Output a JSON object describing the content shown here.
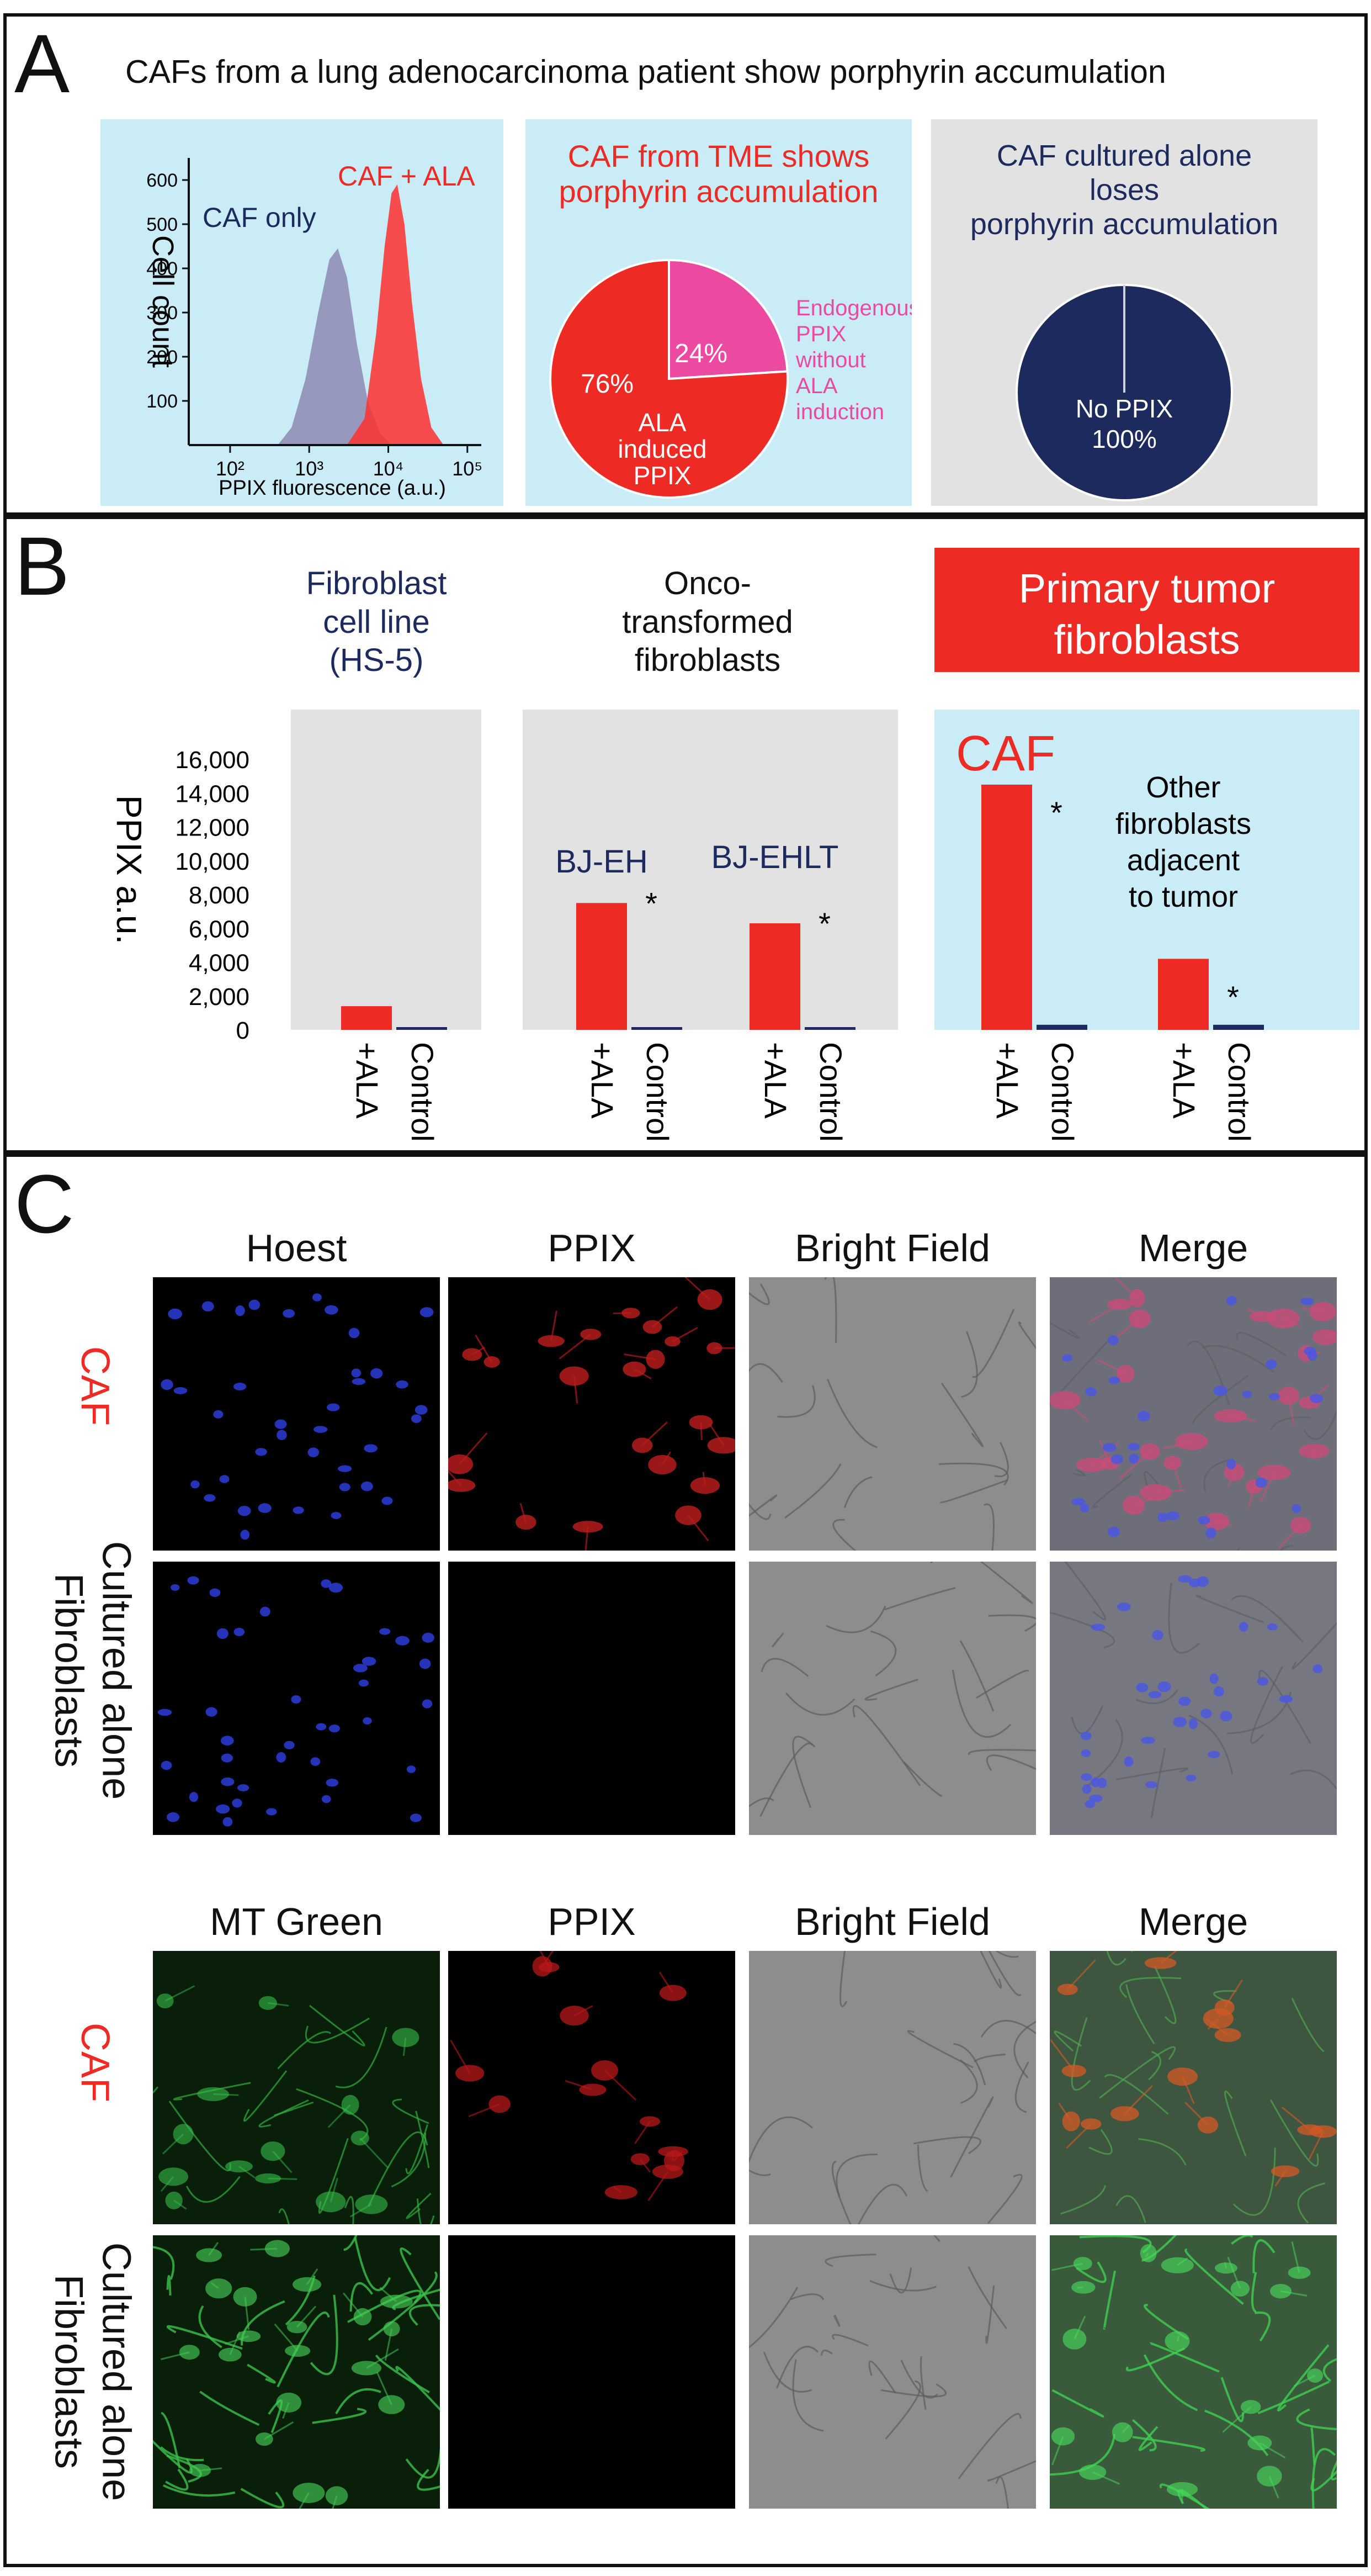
{
  "colors": {
    "red": "#ee2a24",
    "navy": "#1d2a5e",
    "pink": "#ec4aa0",
    "blue_bg": "#c9ecf6",
    "grey_bg": "#e2e2e2",
    "caf_histogram": "#ff3030",
    "caf_only_histogram": "#8d8ab3"
  },
  "panel_a": {
    "letter": "A",
    "title": "CAFs from a lung adenocarcinoma patient show porphyrin accumulation",
    "hist_ylabel": "Cell count",
    "hist_xlabel": "PPIX fluorescence (a.u.)",
    "label_caf_only": "CAF only",
    "label_caf_ala": "CAF + ALA",
    "pie1_title_line1": "CAF from TME shows",
    "pie1_title_line2": "porphyrin accumulation",
    "pie1_label_76": "76%",
    "pie1_label_24": "24%",
    "pie1_inner_line1": "ALA",
    "pie1_inner_line2": "induced",
    "pie1_inner_line3": "PPIX",
    "pie1_side_line1": "Endogenous",
    "pie1_side_line2": "PPIX",
    "pie1_side_line3": "without",
    "pie1_side_line4": "ALA",
    "pie1_side_line5": "induction",
    "pie2_title_line1": "CAF cultured alone",
    "pie2_title_line2": "loses",
    "pie2_title_line3": "porphyrin accumulation",
    "pie2_inner_line1": "No PPIX",
    "pie2_inner_line2": "100%"
  },
  "panel_b": {
    "letter": "B",
    "ylabel": "PPIX a.u.",
    "group1_line1": "Fibroblast",
    "group1_line2": "cell line",
    "group1_line3": "(HS-5)",
    "group2_line1": "Onco-",
    "group2_line2": "transformed",
    "group2_line3": "fibroblasts",
    "group3_line1": "Primary tumor",
    "group3_line2": "fibroblasts",
    "sub_bjeh": "BJ-EH",
    "sub_bjehlt": "BJ-EHLT",
    "sub_caf": "CAF",
    "sub_other_line1": "Other",
    "sub_other_line2": "fibroblasts",
    "sub_other_line3": "adjacent",
    "sub_other_line4": "to tumor",
    "asterisk": "*",
    "tick_ala": "+ALA",
    "tick_control": "Control"
  },
  "panel_c": {
    "letter": "C",
    "top_headers": [
      "Hoest",
      "PPIX",
      "Bright Field",
      "Merge"
    ],
    "bottom_headers": [
      "MT Green",
      "PPIX",
      "Bright Field",
      "Merge"
    ],
    "row_caf": "CAF",
    "row_cult_line1": "Cultured alone",
    "row_cult_line2": "Fibroblasts"
  },
  "chart_data": [
    {
      "type": "area",
      "x_scale": "log",
      "xlim": [
        30,
        150000
      ],
      "ylim": [
        0,
        650
      ],
      "ytick_values": [
        100,
        200,
        300,
        400,
        500,
        600
      ],
      "ytick_labels": [
        "100",
        "200",
        "300",
        "400",
        "500",
        "600"
      ],
      "xtick_values": [
        100,
        1000,
        10000,
        100000
      ],
      "xtick_labels": [
        "10²",
        "10³",
        "10⁴",
        "10⁵"
      ],
      "series": [
        {
          "name": "CAF only",
          "x": [
            400,
            600,
            900,
            1300,
            1800,
            2300,
            3000,
            4000,
            5500,
            8000,
            11000
          ],
          "y": [
            0,
            40,
            150,
            300,
            420,
            445,
            380,
            230,
            100,
            25,
            0
          ]
        },
        {
          "name": "CAF + ALA",
          "x": [
            3000,
            5000,
            7000,
            9000,
            11000,
            13000,
            16000,
            20000,
            26000,
            35000,
            50000
          ],
          "y": [
            0,
            60,
            250,
            450,
            570,
            590,
            500,
            320,
            150,
            40,
            0
          ]
        }
      ]
    },
    {
      "type": "pie",
      "labels": [
        "ALA induced PPIX",
        "Endogenous PPIX without ALA induction"
      ],
      "values": [
        76,
        24
      ]
    },
    {
      "type": "pie",
      "labels": [
        "No PPIX"
      ],
      "values": [
        100
      ]
    },
    {
      "type": "bar",
      "ylim": [
        0,
        16000
      ],
      "ytick_values": [
        0,
        2000,
        4000,
        6000,
        8000,
        10000,
        12000,
        14000,
        16000
      ],
      "ytick_labels": [
        "0",
        "2,000",
        "4,000",
        "6,000",
        "8,000",
        "10,000",
        "12,000",
        "14,000",
        "16,000"
      ],
      "groups": [
        {
          "name": "HS-5",
          "ala": 1400,
          "control": 100,
          "asterisk": false
        },
        {
          "name": "BJ-EH",
          "ala": 7500,
          "control": 100,
          "asterisk": true
        },
        {
          "name": "BJ-EHLT",
          "ala": 6300,
          "control": 100,
          "asterisk": true
        },
        {
          "name": "CAF",
          "ala": 14500,
          "control": 300,
          "asterisk": true
        },
        {
          "name": "Other fibroblasts adjacent to tumor",
          "ala": 4200,
          "control": 300,
          "asterisk": true
        }
      ]
    }
  ]
}
